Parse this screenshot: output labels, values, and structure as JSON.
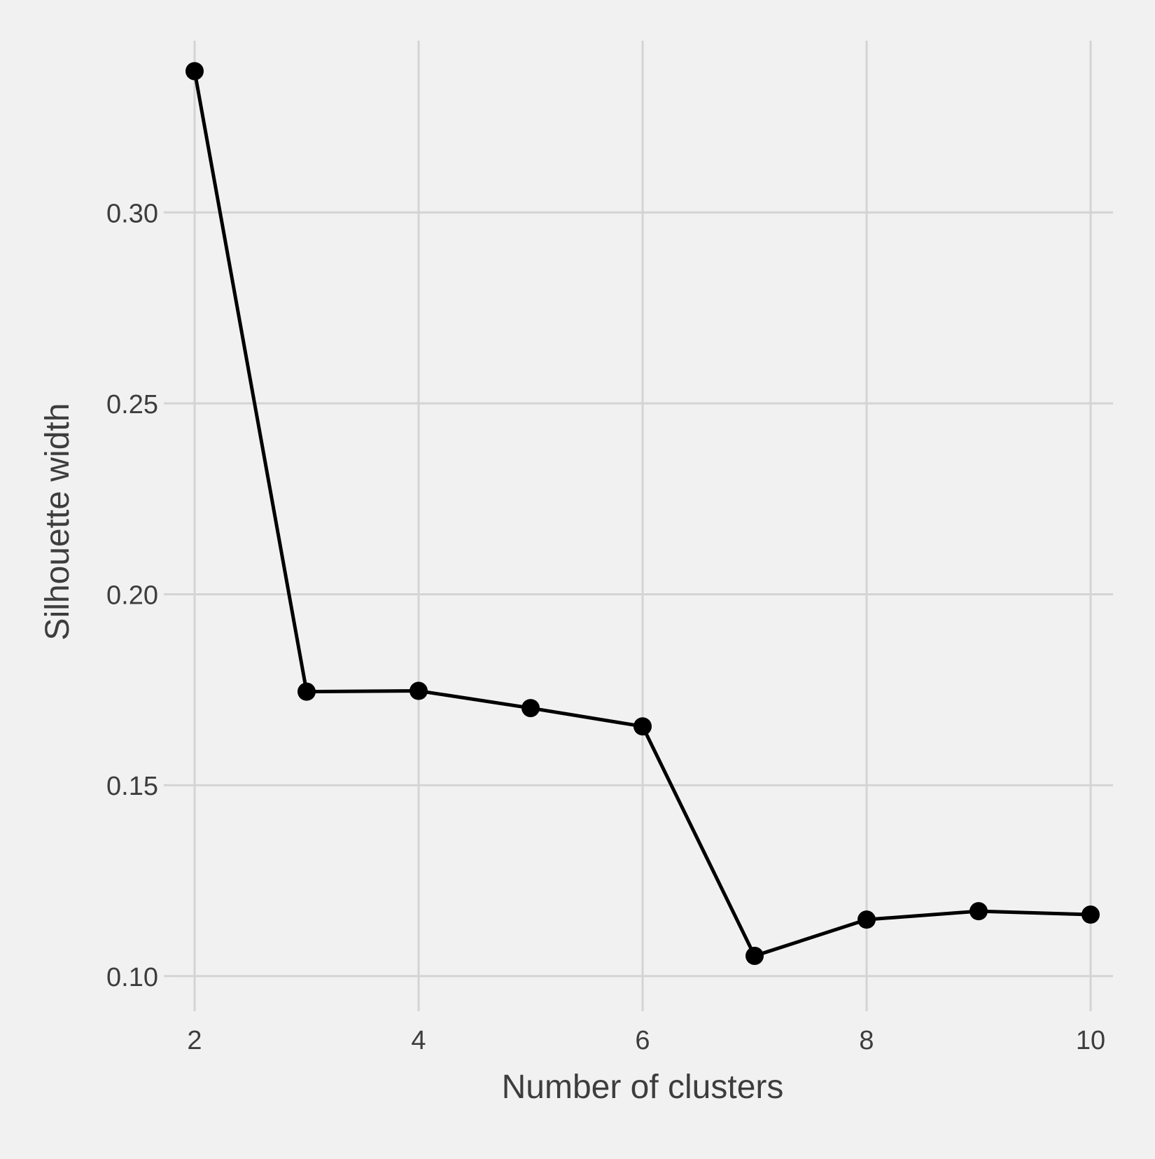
{
  "chart_data": {
    "type": "line",
    "title": "",
    "xlabel": "Number of clusters",
    "ylabel": "Silhouette width",
    "x": [
      2,
      3,
      4,
      5,
      6,
      7,
      8,
      9,
      10
    ],
    "series": [
      {
        "values": [
          0.337,
          0.1745,
          0.1747,
          0.1702,
          0.1654,
          0.1053,
          0.1148,
          0.117,
          0.1161
        ]
      }
    ],
    "xlim": [
      1.8,
      10.2
    ],
    "ylim": [
      0.093,
      0.345
    ],
    "x_ticks": [
      2,
      4,
      6,
      8,
      10
    ],
    "x_tick_labels": [
      "2",
      "4",
      "6",
      "8",
      "10"
    ],
    "y_ticks": [
      0.1,
      0.15,
      0.2,
      0.25,
      0.3
    ],
    "y_tick_labels": [
      "0.10",
      "0.15",
      "0.20",
      "0.25",
      "0.30"
    ],
    "grid": true,
    "legend": "none",
    "colors": {
      "background": "#f1f1f1",
      "grid": "#d4d4d4",
      "line": "#000000",
      "point": "#000000",
      "text": "#3d3d3d"
    }
  }
}
